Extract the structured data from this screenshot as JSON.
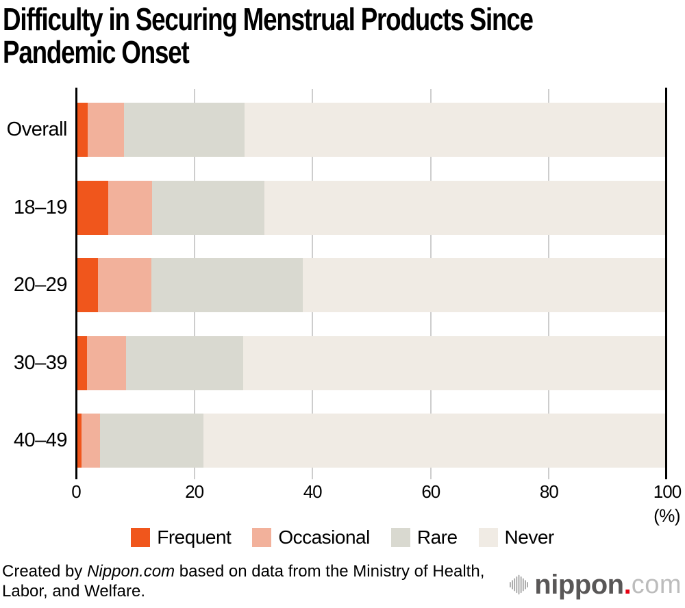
{
  "title": {
    "line1": "Difficulty in Securing Menstrual Products Since",
    "line2": "Pandemic Onset"
  },
  "chart_data": {
    "type": "bar",
    "orientation": "horizontal",
    "stacked": true,
    "title": "Difficulty in Securing Menstrual Products Since Pandemic Onset",
    "categories": [
      "Overall",
      "18–19",
      "20–29",
      "30–39",
      "40–49"
    ],
    "series": [
      {
        "name": "Frequent",
        "color": "#f0561c",
        "values": [
          2.0,
          5.4,
          3.7,
          1.9,
          0.9
        ]
      },
      {
        "name": "Occasional",
        "color": "#f2b19b",
        "values": [
          6.1,
          7.5,
          9.0,
          6.6,
          3.1
        ]
      },
      {
        "name": "Rare",
        "color": "#d9d9d0",
        "values": [
          20.4,
          19.0,
          25.7,
          19.8,
          17.6
        ]
      },
      {
        "name": "Never",
        "color": "#f0ebe4",
        "values": [
          71.5,
          68.1,
          61.6,
          71.7,
          78.4
        ]
      }
    ],
    "x_axis": {
      "range": [
        0,
        100
      ],
      "ticks": [
        0,
        20,
        40,
        60,
        80,
        100
      ],
      "unit_label": "(%)"
    },
    "grid": true,
    "legend_position": "bottom"
  },
  "footer": {
    "credit_prefix": "Created by ",
    "credit_source": "Nippon.com",
    "credit_suffix": " based on data from the Ministry of Health,",
    "credit_line2": "Labor, and Welfare.",
    "logo_name": "nippon",
    "logo_dot": ".",
    "logo_tld": "com"
  },
  "colors": {
    "gridline": "#cdcdcd",
    "axis": "#000000",
    "logo_dark": "#595757",
    "logo_light": "#bcbcbc",
    "logo_red": "#e60012"
  }
}
